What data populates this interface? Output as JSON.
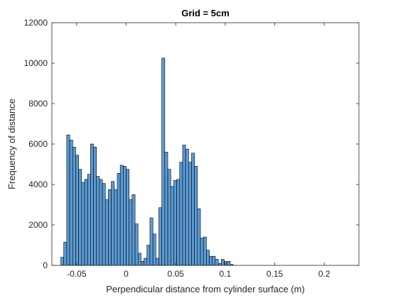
{
  "chart_data": {
    "type": "bar",
    "title": "Grid = 5cm",
    "xlabel": "Perpendicular distance from cylinder surface (m)",
    "ylabel": "Frequency of distance",
    "xlim": [
      -0.075,
      0.235
    ],
    "ylim": [
      0,
      12000
    ],
    "xticks": [
      -0.05,
      0,
      0.05,
      0.1,
      0.15,
      0.2
    ],
    "xtick_labels": [
      "-0.05",
      "0",
      "0.05",
      "0.1",
      "0.15",
      "0.2"
    ],
    "yticks": [
      0,
      2000,
      4000,
      6000,
      8000,
      10000,
      12000
    ],
    "ytick_labels": [
      "0",
      "2000",
      "4000",
      "6000",
      "8000",
      "10000",
      "12000"
    ],
    "bin_width": 0.003,
    "bin_start": -0.066,
    "values": [
      400,
      1150,
      6450,
      6200,
      5850,
      5450,
      4750,
      4100,
      4250,
      4500,
      6000,
      5850,
      4400,
      4250,
      4050,
      3250,
      3750,
      4150,
      3750,
      4550,
      4950,
      4900,
      4750,
      3250,
      3500,
      2050,
      600,
      200,
      350,
      1000,
      2350,
      1550,
      350,
      2850,
      10250,
      5600,
      4750,
      3900,
      4200,
      4250,
      5100,
      5950,
      5750,
      5100,
      5550,
      4900,
      2800,
      1350,
      1400,
      750,
      450,
      450,
      300,
      100,
      300,
      200,
      200,
      50
    ],
    "bar_color": "#5B9BD5",
    "edge_color": "#000000",
    "grid": false,
    "legend": "none"
  }
}
